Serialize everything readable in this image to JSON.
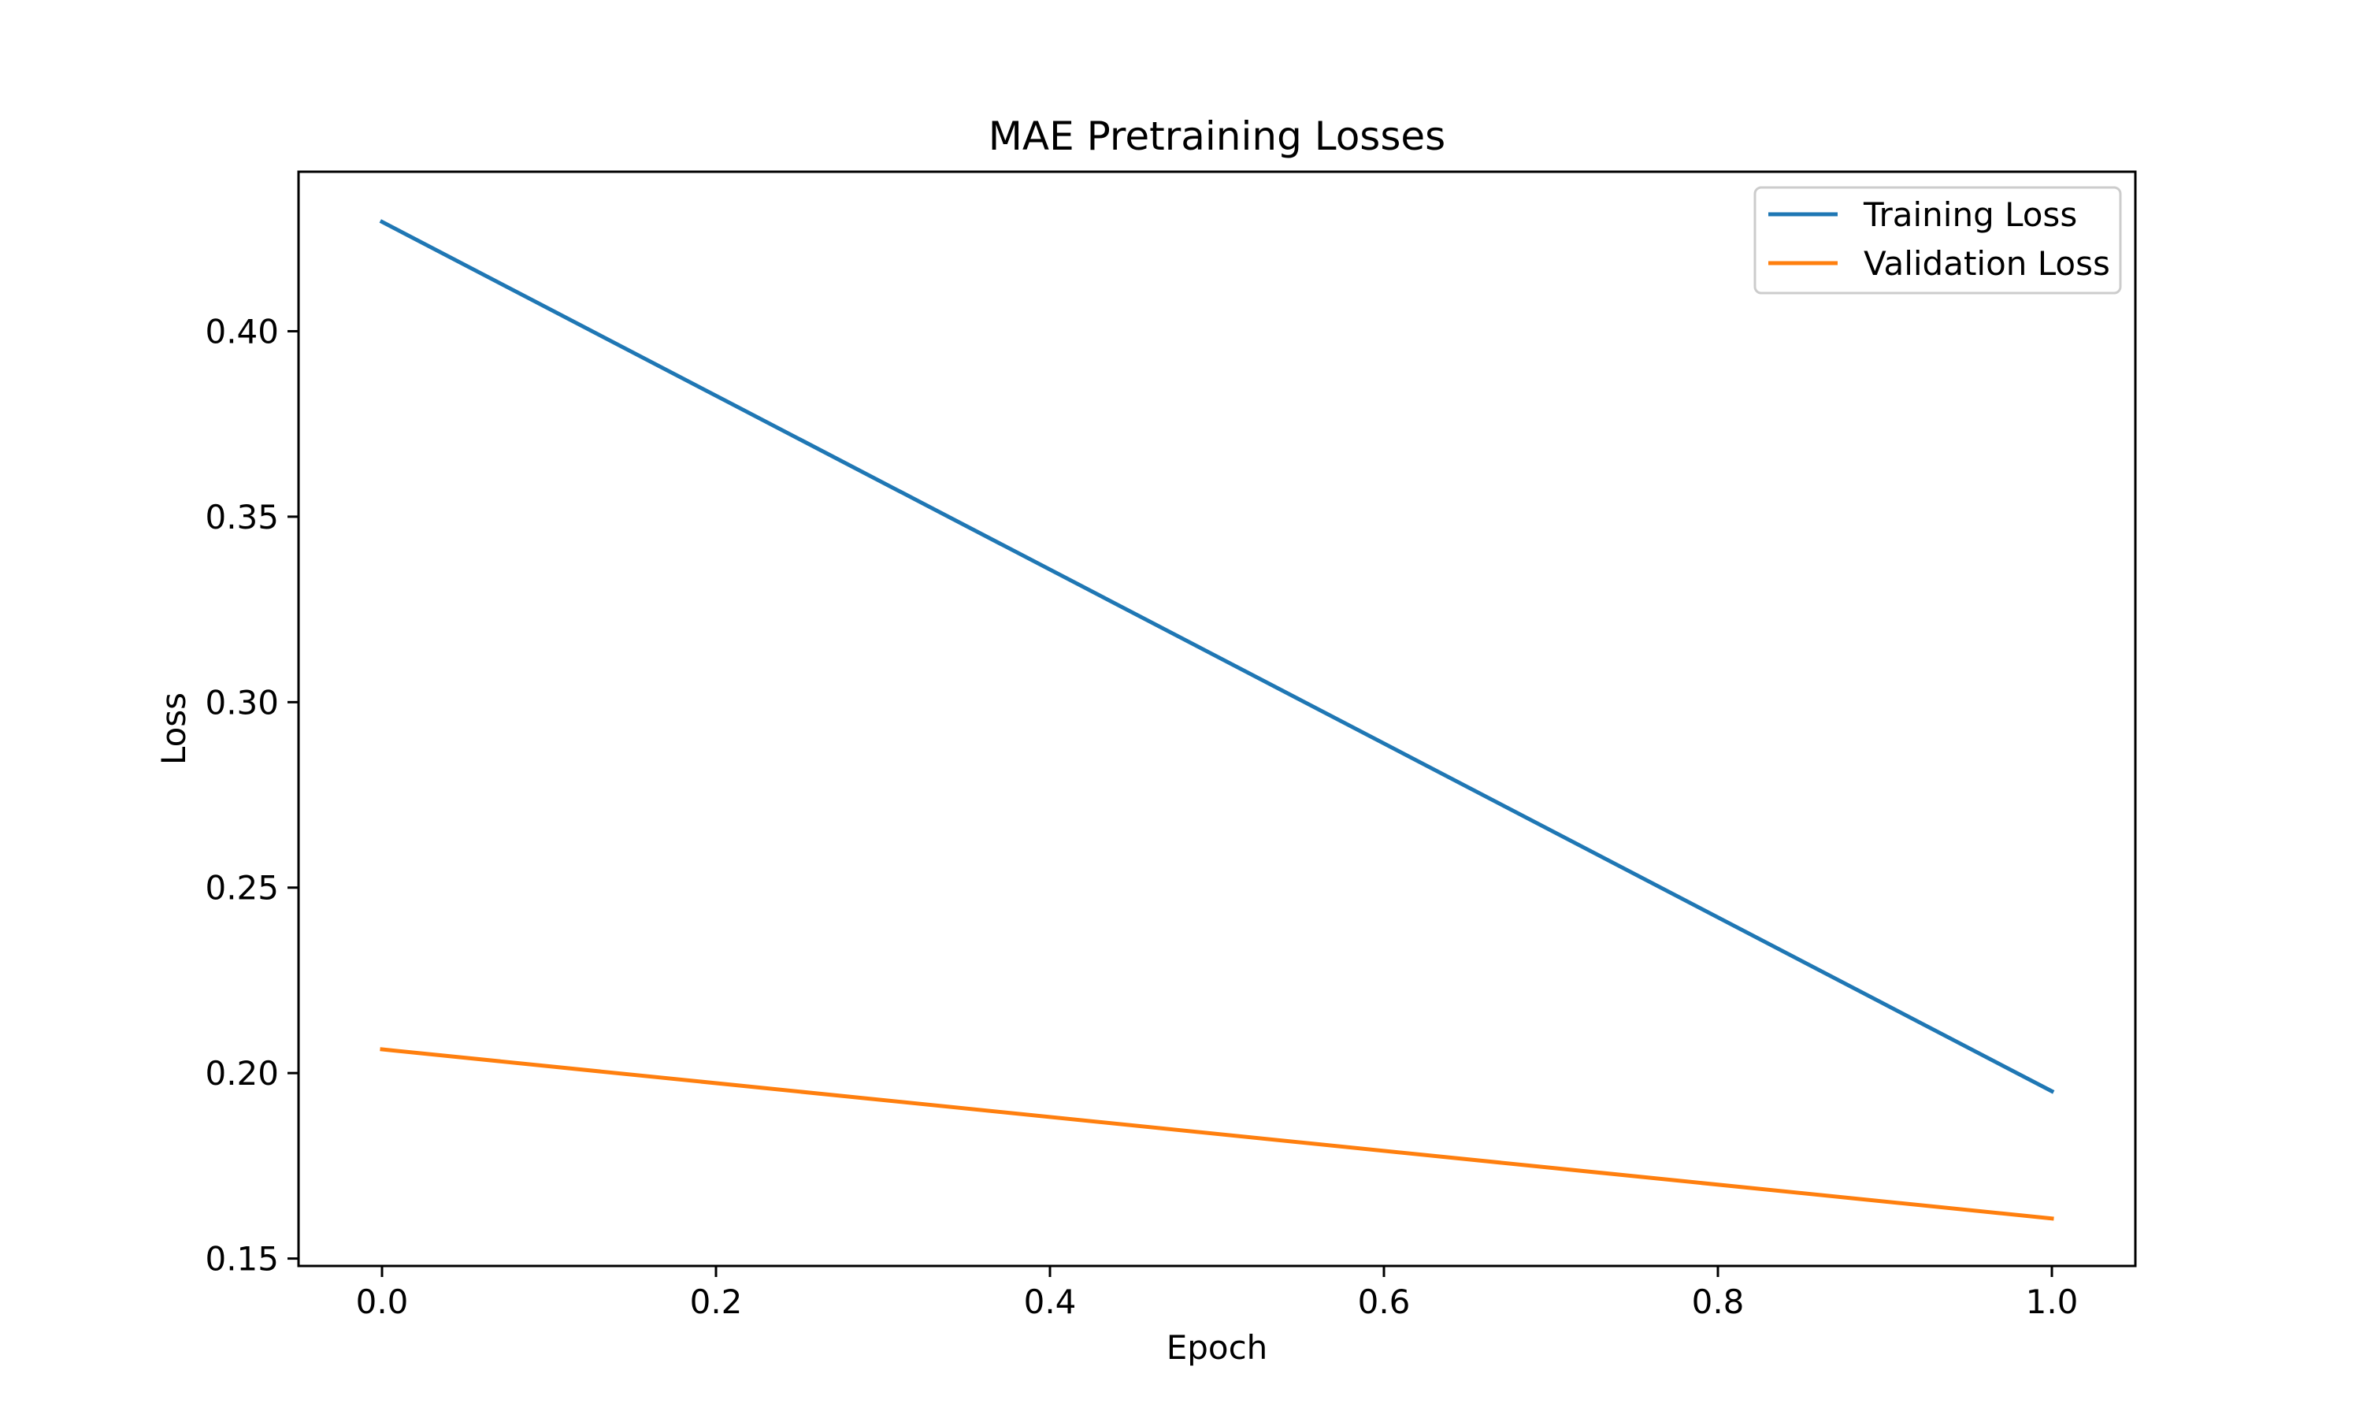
{
  "chart_data": {
    "type": "line",
    "title": "MAE Pretraining Losses",
    "xlabel": "Epoch",
    "ylabel": "Loss",
    "x": [
      0,
      1
    ],
    "xlim": [
      -0.05,
      1.05
    ],
    "ylim": [
      0.148,
      0.443
    ],
    "xticks": [
      0.0,
      0.2,
      0.4,
      0.6,
      0.8,
      1.0
    ],
    "xtick_labels": [
      "0.0",
      "0.2",
      "0.4",
      "0.6",
      "0.8",
      "1.0"
    ],
    "yticks": [
      0.15,
      0.2,
      0.25,
      0.3,
      0.35,
      0.4
    ],
    "ytick_labels": [
      "0.15",
      "0.20",
      "0.25",
      "0.30",
      "0.35",
      "0.40"
    ],
    "grid": false,
    "legend_position": "top-right",
    "series": [
      {
        "name": "Training Loss",
        "color": "#1f77b4",
        "values": [
          0.4295,
          0.1951
        ]
      },
      {
        "name": "Validation Loss",
        "color": "#ff7f0e",
        "values": [
          0.2064,
          0.1608
        ]
      }
    ]
  }
}
